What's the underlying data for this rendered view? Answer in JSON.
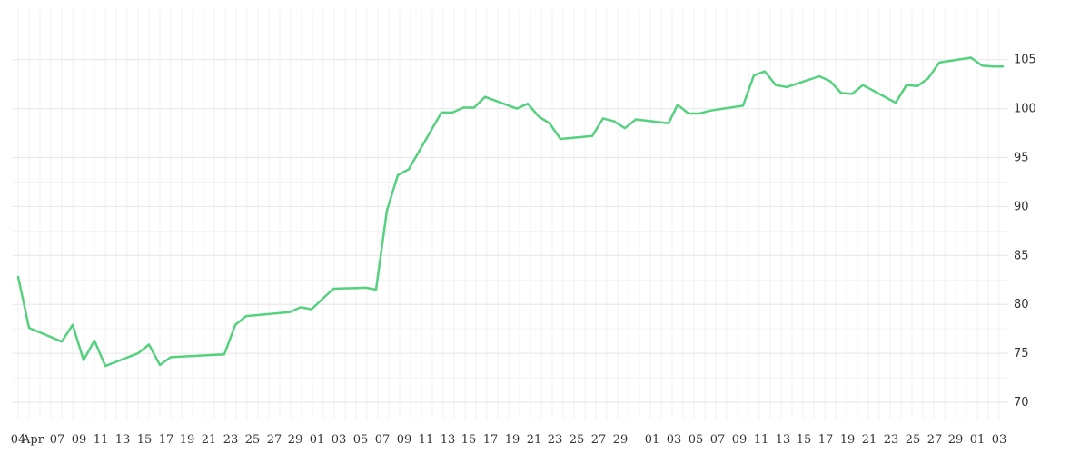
{
  "chart_data": {
    "type": "line",
    "title": "",
    "xlabel": "",
    "ylabel": "",
    "ylim": [
      67.5,
      108.5
    ],
    "y_ticks": [
      70,
      75,
      80,
      85,
      90,
      95,
      100,
      105
    ],
    "x_tick_labels": [
      "04",
      "Apr",
      "07",
      "09",
      "11",
      "13",
      "15",
      "17",
      "19",
      "21",
      "23",
      "25",
      "27",
      "29",
      "01",
      "03",
      "05",
      "07",
      "09",
      "11",
      "13",
      "15",
      "17",
      "19",
      "21",
      "23",
      "25",
      "27",
      "29",
      "01",
      "03",
      "05",
      "07",
      "09",
      "11",
      "13",
      "15",
      "17",
      "19",
      "21",
      "23",
      "25",
      "27",
      "29",
      "01",
      "03"
    ],
    "grid": true,
    "line_color": "#55d17f",
    "series": [
      {
        "name": "",
        "values": [
          82.8,
          77.6,
          76.2,
          77.9,
          74.3,
          76.3,
          73.7,
          75.0,
          75.9,
          73.8,
          74.6,
          74.9,
          77.9,
          78.8,
          79.2,
          79.7,
          79.5,
          81.6,
          81.7,
          81.5,
          89.6,
          93.2,
          93.8,
          99.6,
          99.6,
          100.1,
          100.1,
          101.2,
          100.0,
          100.5,
          99.2,
          98.5,
          96.9,
          97.2,
          99.0,
          98.7,
          98.0,
          98.9,
          98.5,
          100.4,
          99.5,
          99.5,
          99.8,
          100.3,
          103.4,
          103.8,
          102.4,
          102.2,
          103.3,
          102.8,
          101.6,
          101.5,
          102.4,
          100.6,
          102.4,
          102.3,
          103.1,
          104.7,
          105.2,
          104.4,
          104.3,
          104.3
        ]
      }
    ]
  }
}
